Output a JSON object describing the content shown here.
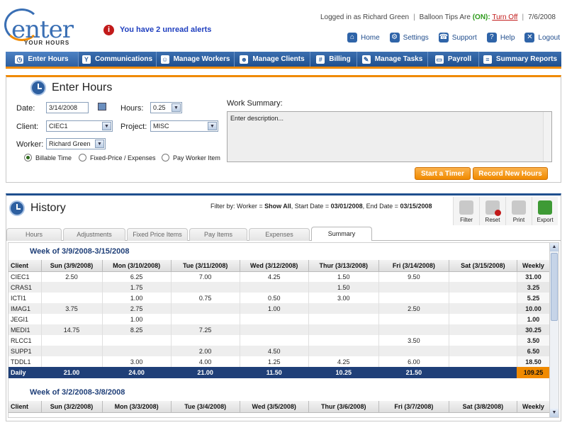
{
  "app": {
    "logo_word": "enter",
    "logo_sub": "YOUR HOURS",
    "alert_text": "You have 2 unread alerts",
    "user_text": "Logged in as Richard Green",
    "balloon_label": "Balloon Tips Are",
    "balloon_state": "(ON):",
    "balloon_action": "Turn Off",
    "date": "7/6/2008"
  },
  "top_links": [
    "Home",
    "Settings",
    "Support",
    "Help",
    "Logout"
  ],
  "nav": [
    "Enter Hours",
    "Communications",
    "Manage Workers",
    "Manage Clients",
    "Billing",
    "Manage Tasks",
    "Payroll",
    "Summary Reports"
  ],
  "enter": {
    "title": "Enter Hours",
    "date_label": "Date:",
    "date_value": "3/14/2008",
    "hours_label": "Hours:",
    "hours_value": "0.25",
    "client_label": "Client:",
    "client_value": "CIEC1",
    "project_label": "Project:",
    "project_value": "MISC",
    "worker_label": "Worker:",
    "worker_value": "Richard Green",
    "radios": [
      "Billable Time",
      "Fixed-Price / Expenses",
      "Pay Worker Item"
    ],
    "work_summary_label": "Work Summary:",
    "work_summary_placeholder": "Enter description...",
    "start_timer": "Start a Timer",
    "record_hours": "Record New Hours"
  },
  "history": {
    "title": "History",
    "filter_prefix": "Filter by: Worker =",
    "filter_worker": "Show All",
    "filter_start_prefix": ", Start Date =",
    "filter_start": "03/01/2008",
    "filter_end_prefix": ", End Date =",
    "filter_end": "03/15/2008",
    "tools": [
      "Filter",
      "Reset",
      "Print",
      "Export"
    ],
    "tabs": [
      "Hours",
      "Adjustments",
      "Fixed Price Items",
      "Pay Items",
      "Expenses",
      "Summary"
    ],
    "week1_title": "Week of 3/9/2008-3/15/2008",
    "week1_headers": [
      "Client",
      "Sun (3/9/2008)",
      "Mon (3/10/2008)",
      "Tue (3/11/2008)",
      "Wed (3/12/2008)",
      "Thur (3/13/2008)",
      "Fri (3/14/2008)",
      "Sat (3/15/2008)",
      "Weekly"
    ],
    "week1_rows": [
      [
        "CIEC1",
        "2.50",
        "6.25",
        "7.00",
        "4.25",
        "1.50",
        "9.50",
        "",
        "31.00"
      ],
      [
        "CRAS1",
        "",
        "1.75",
        "",
        "",
        "1.50",
        "",
        "",
        "3.25"
      ],
      [
        "ICTI1",
        "",
        "1.00",
        "0.75",
        "0.50",
        "3.00",
        "",
        "",
        "5.25"
      ],
      [
        "IMAG1",
        "3.75",
        "2.75",
        "",
        "1.00",
        "",
        "2.50",
        "",
        "10.00"
      ],
      [
        "JEGI1",
        "",
        "1.00",
        "",
        "",
        "",
        "",
        "",
        "1.00"
      ],
      [
        "MEDI1",
        "14.75",
        "8.25",
        "7.25",
        "",
        "",
        "",
        "",
        "30.25"
      ],
      [
        "RLCC1",
        "",
        "",
        "",
        "",
        "",
        "3.50",
        "",
        "3.50"
      ],
      [
        "SUPP1",
        "",
        "",
        "2.00",
        "4.50",
        "",
        "",
        "",
        "6.50"
      ],
      [
        "TDDL1",
        "",
        "3.00",
        "4.00",
        "1.25",
        "4.25",
        "6.00",
        "",
        "18.50"
      ]
    ],
    "week1_daily": [
      "Daily",
      "21.00",
      "24.00",
      "21.00",
      "11.50",
      "10.25",
      "21.50",
      "",
      "109.25"
    ],
    "week2_title": "Week of 3/2/2008-3/8/2008",
    "week2_headers": [
      "Client",
      "Sun (3/2/2008)",
      "Mon (3/3/2008)",
      "Tue (3/4/2008)",
      "Wed (3/5/2008)",
      "Thur (3/6/2008)",
      "Fri (3/7/2008)",
      "Sat (3/8/2008)",
      "Weekly"
    ]
  },
  "colors": {
    "brand_blue": "#1f4f8e",
    "accent_orange": "#f08a00",
    "daily_row": "#1f3f78"
  }
}
